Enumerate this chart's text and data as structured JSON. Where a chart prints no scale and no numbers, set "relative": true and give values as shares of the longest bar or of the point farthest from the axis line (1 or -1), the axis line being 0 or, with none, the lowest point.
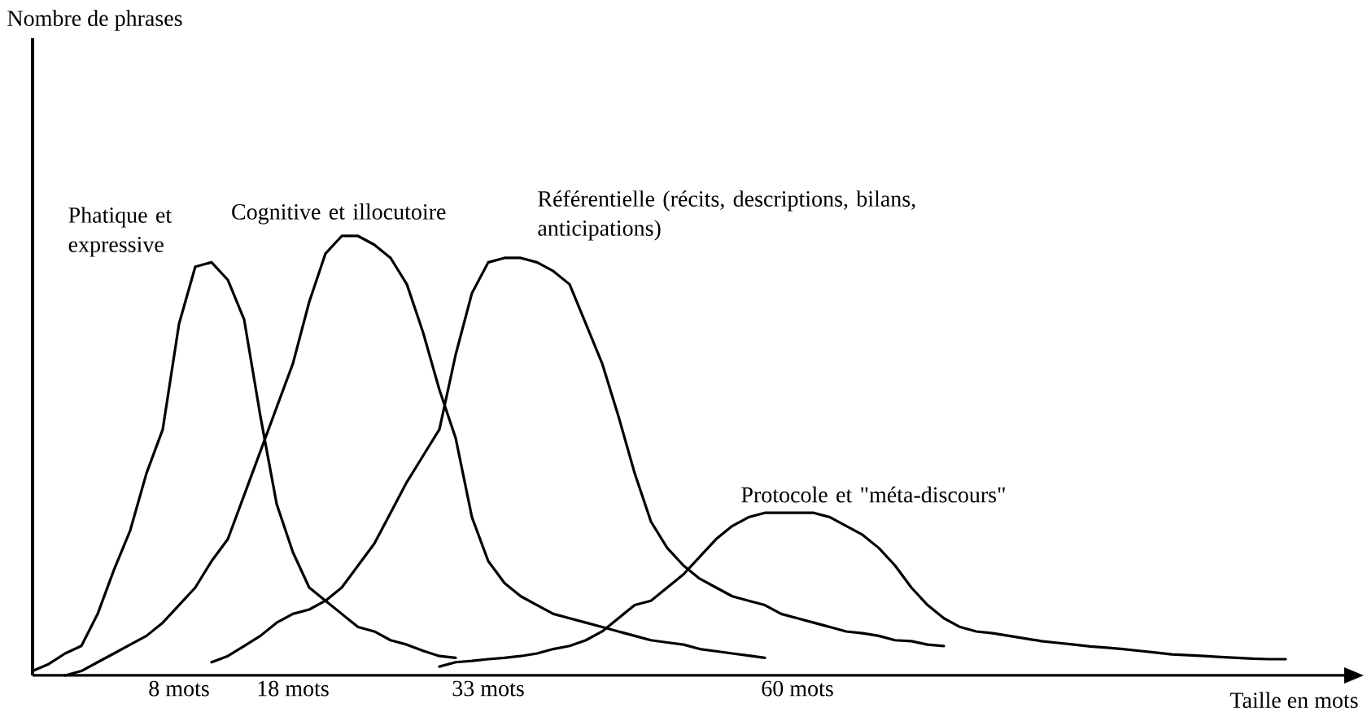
{
  "chart_data": {
    "type": "line",
    "relative": true,
    "legend": false,
    "marker": "none",
    "line_style": "solid",
    "xlabel": "Taille en mots",
    "annotations": [
      "Nombre de phrases"
    ],
    "categories": [
      null,
      null,
      null,
      null,
      null,
      null,
      null,
      null,
      null,
      "8 mots",
      null,
      null,
      null,
      null,
      null,
      null,
      "18 mots",
      null,
      null,
      null,
      null,
      null,
      null,
      null,
      null,
      null,
      null,
      null,
      "33 mots",
      null,
      null,
      null,
      null,
      null,
      null,
      null,
      null,
      null,
      null,
      null,
      null,
      null,
      null,
      null,
      null,
      null,
      null,
      "60 mots",
      null,
      null,
      null,
      null,
      null,
      null,
      null,
      null,
      null,
      null,
      null,
      null,
      null,
      null,
      null,
      null,
      null,
      null,
      null,
      null,
      null,
      null,
      null,
      null,
      null,
      null,
      null,
      null,
      null,
      null,
      null,
      null
    ],
    "series": [
      {
        "name": "Phatique et expressive",
        "color": "#000000",
        "values": [
          0.01,
          0.026,
          0.05,
          0.067,
          0.14,
          0.24,
          0.33,
          0.46,
          0.56,
          0.8,
          0.93,
          0.94,
          0.9,
          0.81,
          0.59,
          0.39,
          0.28,
          0.2,
          0.17,
          0.14,
          0.11,
          0.1,
          0.08,
          0.07,
          0.056,
          0.044,
          0.04,
          null,
          null,
          null,
          null,
          null,
          null,
          null,
          null,
          null,
          null,
          null,
          null,
          null,
          null,
          null,
          null,
          null,
          null,
          null,
          null,
          null,
          null,
          null,
          null,
          null,
          null,
          null,
          null,
          null,
          null,
          null,
          null,
          null,
          null,
          null,
          null,
          null,
          null,
          null,
          null,
          null,
          null,
          null,
          null,
          null,
          null,
          null,
          null,
          null,
          null,
          null,
          null,
          null
        ]
      },
      {
        "name": "Cognitive et illocutoire",
        "color": "#000000",
        "values": [
          null,
          null,
          0,
          0.01,
          0.03,
          0.05,
          0.07,
          0.09,
          0.12,
          0.16,
          0.2,
          0.26,
          0.31,
          0.41,
          0.51,
          0.61,
          0.71,
          0.85,
          0.96,
          1,
          1,
          0.98,
          0.95,
          0.89,
          0.78,
          0.65,
          0.54,
          0.36,
          0.26,
          0.21,
          0.18,
          0.16,
          0.14,
          0.13,
          0.12,
          0.11,
          0.1,
          0.09,
          0.08,
          0.075,
          0.07,
          0.06,
          0.055,
          0.05,
          0.045,
          0.04,
          null,
          null,
          null,
          null,
          null,
          null,
          null,
          null,
          null,
          null,
          null,
          null,
          null,
          null,
          null,
          null,
          null,
          null,
          null,
          null,
          null,
          null,
          null,
          null,
          null,
          null,
          null,
          null,
          null,
          null,
          null,
          null,
          null,
          null
        ]
      },
      {
        "name": "Référentielle (récits, descriptions, bilans, anticipations)",
        "color": "#000000",
        "values": [
          null,
          null,
          null,
          null,
          null,
          null,
          null,
          null,
          null,
          null,
          null,
          0.03,
          0.044,
          0.067,
          0.09,
          0.12,
          0.14,
          0.15,
          0.17,
          0.2,
          0.25,
          0.3,
          0.37,
          0.44,
          0.5,
          0.56,
          0.73,
          0.87,
          0.94,
          0.95,
          0.95,
          0.94,
          0.92,
          0.89,
          0.8,
          0.71,
          0.59,
          0.46,
          0.35,
          0.29,
          0.25,
          0.22,
          0.2,
          0.18,
          0.17,
          0.16,
          0.14,
          0.13,
          0.12,
          0.11,
          0.1,
          0.096,
          0.09,
          0.08,
          0.078,
          0.07,
          0.067,
          null,
          null,
          null,
          null,
          null,
          null,
          null,
          null,
          null,
          null,
          null,
          null,
          null,
          null,
          null,
          null,
          null,
          null,
          null,
          null,
          null,
          null,
          null
        ]
      },
      {
        "name": "Protocole et \"méta-discours\"",
        "color": "#000000",
        "values": [
          null,
          null,
          null,
          null,
          null,
          null,
          null,
          null,
          null,
          null,
          null,
          null,
          null,
          null,
          null,
          null,
          null,
          null,
          null,
          null,
          null,
          null,
          null,
          null,
          null,
          0.02,
          0.03,
          0.033,
          0.037,
          0.04,
          0.044,
          0.05,
          0.06,
          0.067,
          0.08,
          0.1,
          0.13,
          0.16,
          0.17,
          0.2,
          0.23,
          0.27,
          0.31,
          0.34,
          0.36,
          0.37,
          0.37,
          0.37,
          0.37,
          0.36,
          0.34,
          0.32,
          0.29,
          0.25,
          0.2,
          0.16,
          0.13,
          0.11,
          0.1,
          0.096,
          0.09,
          0.084,
          0.078,
          0.074,
          0.07,
          0.066,
          0.063,
          0.06,
          0.056,
          0.052,
          0.048,
          0.046,
          0.044,
          0.042,
          0.04,
          0.038,
          0.037,
          0.037,
          null,
          null
        ]
      }
    ]
  }
}
